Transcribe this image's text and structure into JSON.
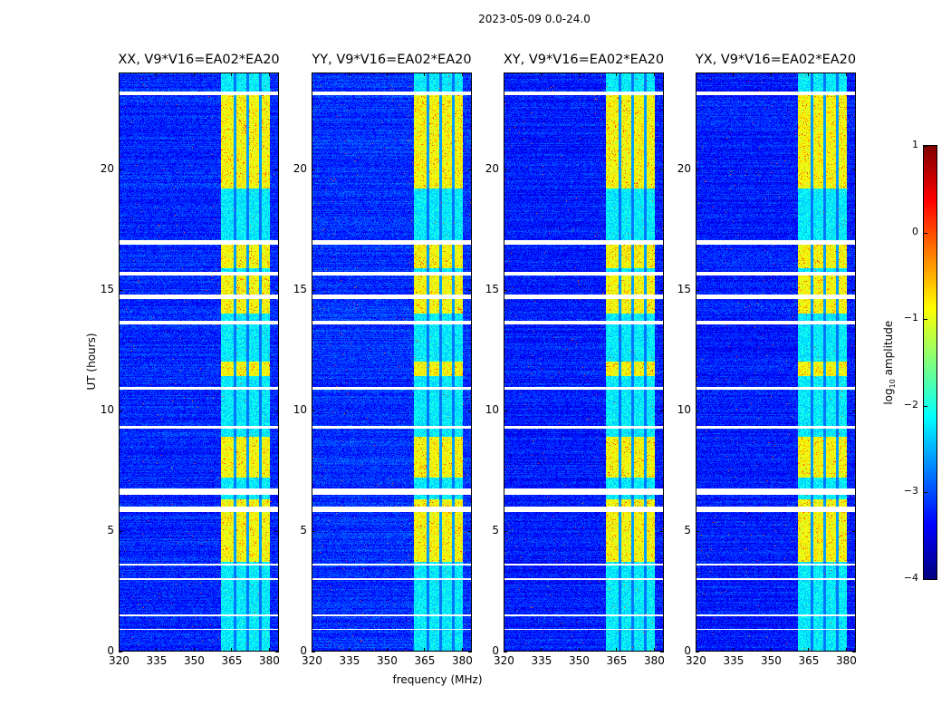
{
  "title": "2023-05-09 0.0-24.0",
  "xlabel": "frequency (MHz)",
  "ylabel": "UT (hours)",
  "colorbar": {
    "label_prefix": "log",
    "label_sub": "10",
    "label_suffix": " amplitude",
    "range": [
      -4,
      1
    ],
    "ticks": [
      "1",
      "0",
      "−1",
      "−2",
      "−3",
      "−4"
    ],
    "tick_values": [
      1,
      0,
      -1,
      -2,
      -3,
      -4
    ],
    "colormap": "jet"
  },
  "chart_data": {
    "type": "heatmap",
    "title": "2023-05-09 0.0-24.0",
    "xlabel": "frequency (MHz)",
    "ylabel": "UT (hours)",
    "xlim": [
      320,
      384
    ],
    "ylim": [
      0,
      24
    ],
    "xticks": [
      320,
      335,
      350,
      365,
      380
    ],
    "yticks": [
      0,
      5,
      10,
      15,
      20
    ],
    "value_label": "log10 amplitude",
    "value_range": [
      -4,
      1
    ],
    "background_level": -3.2,
    "rfi_band_mhz": [
      361,
      380.5
    ],
    "rfi_channel_gaps_mhz": [
      366.5,
      371.5,
      376.5
    ],
    "rfi_quiet_level": -2.2,
    "rfi_bright_level": -0.9,
    "rfi_bright_hours": [
      [
        19.2,
        23.1
      ],
      [
        15.9,
        16.9
      ],
      [
        14.0,
        15.6
      ],
      [
        11.4,
        12.0
      ],
      [
        7.2,
        8.9
      ],
      [
        3.7,
        6.3
      ]
    ],
    "flagged_hours": [
      [
        23.05,
        23.2
      ],
      [
        16.85,
        17.05
      ],
      [
        15.6,
        15.75
      ],
      [
        14.6,
        14.8
      ],
      [
        13.55,
        13.7
      ],
      [
        10.85,
        10.95
      ],
      [
        9.25,
        9.35
      ],
      [
        6.5,
        6.75
      ],
      [
        5.8,
        6.0
      ],
      [
        3.55,
        3.65
      ],
      [
        2.95,
        3.05
      ],
      [
        1.45,
        1.55
      ],
      [
        0.9,
        0.95
      ]
    ],
    "panels": [
      {
        "title": "XX, V9*V16=EA02*EA20",
        "offset": 0.0
      },
      {
        "title": "YY, V9*V16=EA02*EA20",
        "offset": 0.05
      },
      {
        "title": "XY, V9*V16=EA02*EA20",
        "offset": -0.05
      },
      {
        "title": "YX, V9*V16=EA02*EA20",
        "offset": -0.05
      }
    ]
  }
}
